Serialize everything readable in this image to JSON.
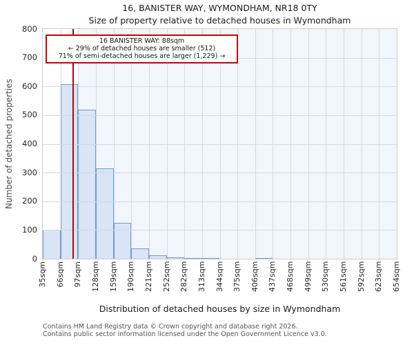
{
  "title": "16, BANISTER WAY, WYMONDHAM, NR18 0TY",
  "subtitle": "Size of property relative to detached houses in Wymondham",
  "annotation": {
    "line1": "16 BANISTER WAY: 88sqm",
    "line2": "← 29% of detached houses are smaller (512)",
    "line3": "71% of semi-detached houses are larger (1,229) →"
  },
  "footer": {
    "line1": "Contains HM Land Registry data © Crown copyright and database right 2026.",
    "line2": "Contains public sector information licensed under the Open Government Licence v3.0."
  },
  "chart_data": {
    "type": "bar",
    "title": "16, BANISTER WAY, WYMONDHAM, NR18 0TY",
    "subtitle": "Size of property relative to detached houses in Wymondham",
    "xlabel": "Distribution of detached houses by size in Wymondham",
    "ylabel": "Number of detached properties",
    "bin_edges_sqm": [
      35,
      66,
      97,
      128,
      159,
      190,
      221,
      252,
      282,
      313,
      344,
      375,
      406,
      437,
      468,
      499,
      530,
      561,
      592,
      623,
      654
    ],
    "x_tick_labels": [
      "35sqm",
      "66sqm",
      "97sqm",
      "128sqm",
      "159sqm",
      "190sqm",
      "221sqm",
      "252sqm",
      "282sqm",
      "313sqm",
      "344sqm",
      "375sqm",
      "406sqm",
      "437sqm",
      "468sqm",
      "499sqm",
      "530sqm",
      "561sqm",
      "592sqm",
      "623sqm",
      "654sqm"
    ],
    "values": [
      100,
      608,
      520,
      315,
      125,
      35,
      12,
      5,
      3,
      2,
      0,
      0,
      3,
      0,
      0,
      0,
      0,
      0,
      0,
      0
    ],
    "y_ticks": [
      0,
      100,
      200,
      300,
      400,
      500,
      600,
      700,
      800
    ],
    "ylim": [
      0,
      800
    ],
    "grid": true,
    "marker_value_sqm": 88,
    "highlight_span_sqm": [
      97,
      654
    ],
    "colors": {
      "bar_fill": "#d9e4f5",
      "bar_edge": "#6f9bd1",
      "marker_line": "#b00505",
      "annotation_border": "#cc0000",
      "span_fill": "#f1f5fc",
      "grid": "#d6d9de"
    }
  }
}
